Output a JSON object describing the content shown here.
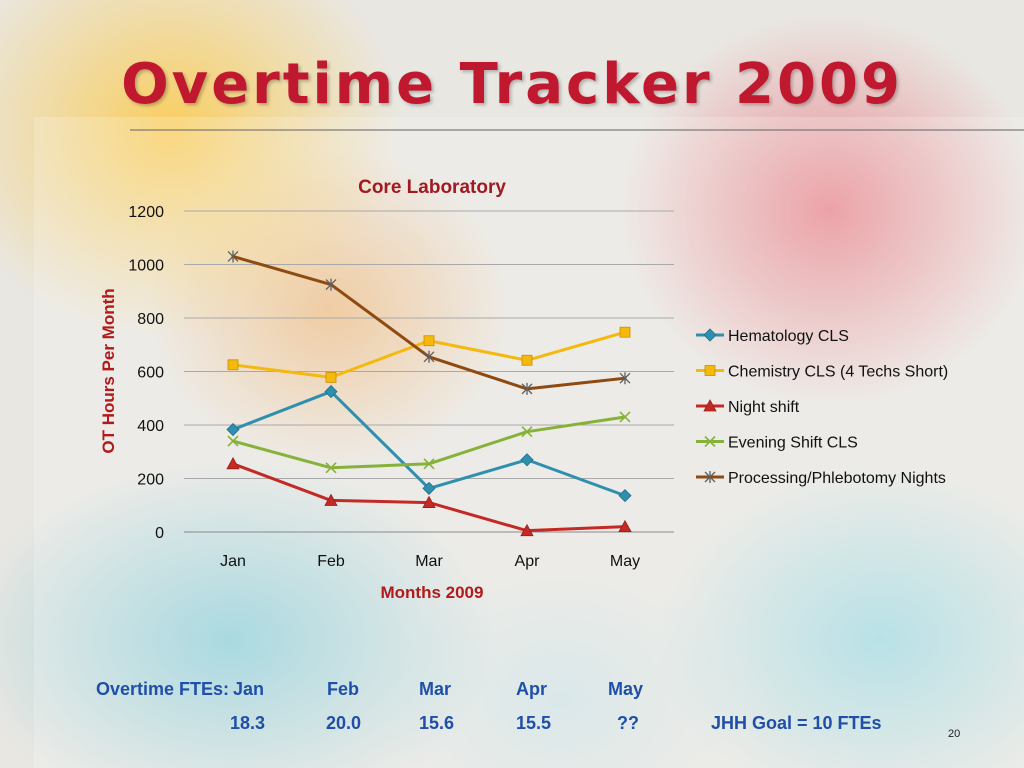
{
  "slide": {
    "title": "Overtime Tracker 2009",
    "page_number": "20"
  },
  "chart_data": {
    "type": "line",
    "title": "Core Laboratory",
    "xlabel": "Months 2009",
    "ylabel": "OT Hours Per Month",
    "categories": [
      "Jan",
      "Feb",
      "Mar",
      "Apr",
      "May"
    ],
    "ylim": [
      0,
      1200
    ],
    "yticks": [
      0,
      200,
      400,
      600,
      800,
      1000,
      1200
    ],
    "grid": true,
    "legend_position": "right",
    "series": [
      {
        "name": "Hematology CLS",
        "color": "#2f8fae",
        "marker": "diamond",
        "values": [
          383,
          525,
          163,
          270,
          136
        ]
      },
      {
        "name": "Chemistry CLS (4 Techs Short)",
        "color": "#f5b80c",
        "marker": "square",
        "values": [
          625,
          578,
          715,
          642,
          747
        ]
      },
      {
        "name": "Night shift",
        "color": "#c42a25",
        "marker": "triangle",
        "values": [
          255,
          118,
          110,
          5,
          20
        ]
      },
      {
        "name": "Evening Shift CLS",
        "color": "#86b23a",
        "marker": "x",
        "values": [
          340,
          240,
          255,
          375,
          430
        ]
      },
      {
        "name": "Processing/Phlebotomy Nights",
        "color": "#8e4a10",
        "marker": "star",
        "values": [
          1030,
          925,
          655,
          535,
          575
        ]
      }
    ]
  },
  "fte_summary": {
    "label": "Overtime FTEs:",
    "months": [
      "Jan",
      "Feb",
      "Mar",
      "Apr",
      "May"
    ],
    "values": [
      "18.3",
      "20.0",
      "15.6",
      "15.5",
      "??"
    ],
    "goal": "JHH Goal = 10 FTEs"
  }
}
